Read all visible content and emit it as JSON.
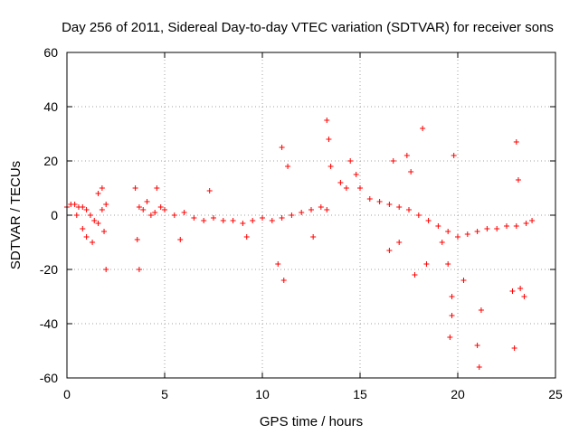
{
  "chart_data": {
    "type": "scatter",
    "title": "Day 256 of 2011, Sidereal Day-to-day VTEC variation (SDTVAR) for receiver sons",
    "xlabel": "GPS time / hours",
    "ylabel": "SDTVAR / TECUs",
    "xlim": [
      0,
      25
    ],
    "ylim": [
      -60,
      60
    ],
    "xticks": [
      0,
      5,
      10,
      15,
      20,
      25
    ],
    "yticks": [
      -60,
      -40,
      -20,
      0,
      20,
      40,
      60
    ],
    "xtick_labels": [
      "0",
      "5",
      "10",
      "15",
      "20",
      "25"
    ],
    "ytick_labels": [
      "-60",
      "-40",
      "-20",
      "0",
      "20",
      "40",
      "60"
    ],
    "grid": true,
    "marker": "+",
    "color": "#ff0000",
    "series": [
      {
        "name": "SDTVAR",
        "x": [
          0.0,
          0.2,
          0.4,
          0.6,
          0.8,
          1.0,
          1.2,
          1.4,
          1.6,
          1.8,
          2.0,
          0.5,
          0.8,
          1.0,
          1.3,
          1.6,
          1.8,
          1.9,
          2.0,
          3.5,
          3.7,
          3.9,
          4.1,
          4.3,
          4.5,
          4.8,
          5.0,
          3.6,
          3.7,
          4.6,
          5.5,
          6.0,
          6.5,
          7.0,
          7.5,
          8.0,
          8.5,
          9.0,
          9.5,
          10.0,
          10.5,
          11.0,
          5.8,
          7.3,
          9.2,
          10.8,
          11.0,
          11.1,
          11.3,
          11.5,
          12.0,
          12.5,
          13.0,
          13.3,
          13.5,
          14.0,
          14.3,
          14.5,
          14.8,
          13.3,
          13.4,
          12.6,
          15.0,
          15.5,
          16.0,
          16.5,
          17.0,
          17.5,
          18.0,
          18.5,
          19.0,
          19.5,
          16.7,
          17.4,
          17.6,
          18.4,
          18.2,
          17.8,
          17.0,
          16.5,
          19.2,
          19.5,
          19.7,
          20.0,
          20.5,
          21.0,
          21.5,
          22.0,
          22.5,
          23.0,
          23.5,
          23.8,
          19.6,
          19.7,
          20.3,
          21.0,
          21.1,
          22.9,
          23.0,
          23.2,
          23.4,
          19.8,
          21.2,
          22.8,
          23.1
        ],
        "y": [
          3,
          4,
          4,
          3,
          3,
          2,
          0,
          -2,
          -3,
          2,
          4,
          0,
          -5,
          -8,
          -10,
          8,
          10,
          -6,
          -20,
          10,
          3,
          2,
          5,
          0,
          1,
          3,
          2,
          -9,
          -20,
          10,
          0,
          1,
          -1,
          -2,
          -1,
          -2,
          -2,
          -3,
          -2,
          -1,
          -2,
          -1,
          -9,
          9,
          -8,
          -18,
          25,
          -24,
          18,
          0,
          1,
          2,
          3,
          2,
          18,
          12,
          10,
          20,
          15,
          35,
          28,
          -8,
          10,
          6,
          5,
          4,
          3,
          2,
          0,
          -2,
          -4,
          -6,
          20,
          22,
          16,
          -18,
          32,
          -22,
          -10,
          -13,
          -10,
          -18,
          -30,
          -8,
          -7,
          -6,
          -5,
          -5,
          -4,
          -4,
          -3,
          -2,
          -45,
          -37,
          -24,
          -48,
          -56,
          -49,
          27,
          -27,
          -30,
          22,
          -35,
          -28,
          13
        ]
      }
    ]
  }
}
